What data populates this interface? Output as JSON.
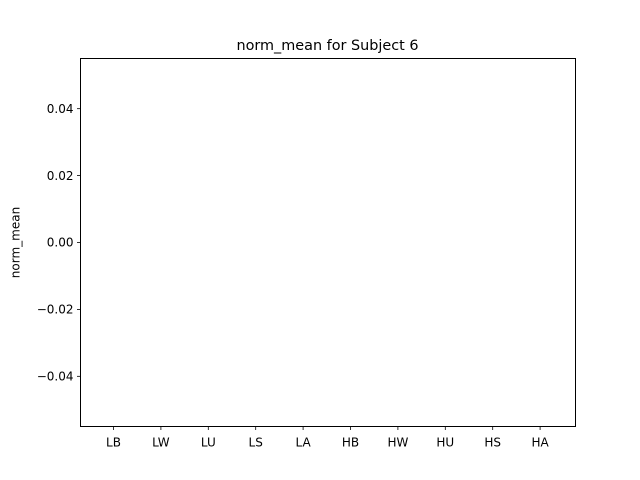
{
  "chart_data": {
    "type": "bar",
    "title": "norm_mean for Subject 6",
    "xlabel": "",
    "ylabel": "norm_mean",
    "categories": [
      "LB",
      "LW",
      "LU",
      "LS",
      "LA",
      "HB",
      "HW",
      "HU",
      "HS",
      "HA"
    ],
    "values": [
      0,
      0,
      0,
      0,
      0,
      0,
      0,
      0,
      0,
      0
    ],
    "ylim": [
      -0.055,
      0.055
    ],
    "yticks": [
      -0.04,
      -0.02,
      0.0,
      0.02,
      0.04
    ],
    "ytick_labels": [
      "−0.04",
      "−0.02",
      "0.00",
      "0.02",
      "0.04"
    ],
    "grid": false,
    "legend": "none"
  }
}
